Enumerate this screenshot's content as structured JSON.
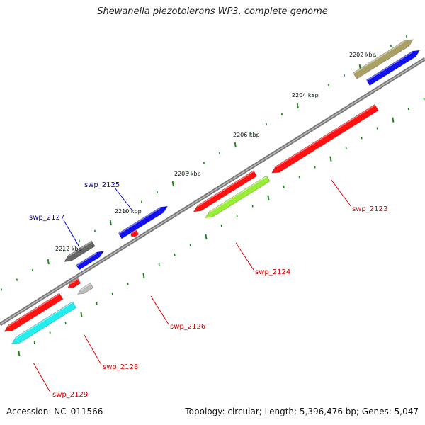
{
  "title": "Shewanella piezotolerans WP3, complete genome",
  "accession": "Accession: NC_011566",
  "summary": "Topology: circular; Length: 5,396,476 bp; Genes: 5,047",
  "colors": {
    "backbone": "#888888",
    "forward_label": "#0000cc",
    "reverse_label": "#dd0000",
    "tick_green": "#1a8a1a"
  },
  "axis_labels": [
    {
      "text": "2202 kbp"
    },
    {
      "text": "2204 kbp"
    },
    {
      "text": "2206 kbp"
    },
    {
      "text": "2208 kbp"
    },
    {
      "text": "2210 kbp"
    },
    {
      "text": "2212 kbp"
    }
  ],
  "genes": [
    {
      "name": "swp_2123",
      "color": "#ff1111",
      "labeled": true
    },
    {
      "name": "swp_2124",
      "color": "#ff1111",
      "labeled": true
    },
    {
      "name": "swp_2124 (cog)",
      "color": "#99ee33",
      "labeled": false
    },
    {
      "name": "swp_2125",
      "color": "#1111ee",
      "labeled": true
    },
    {
      "name": "swp_2126",
      "color": "#ff1111",
      "labeled": true
    },
    {
      "name": "swp_2127",
      "color": "#1111ee",
      "labeled": true
    },
    {
      "name": "swp_2127 (cog)",
      "color": "#666666",
      "labeled": false
    },
    {
      "name": "swp_2128",
      "color": "#ff1111",
      "labeled": true
    },
    {
      "name": "swp_2128 (cog)",
      "color": "#bbbbbb",
      "labeled": false
    },
    {
      "name": "swp_2129",
      "color": "#ff1111",
      "labeled": true
    },
    {
      "name": "swp_2129 (cog)",
      "color": "#22eeee",
      "labeled": false
    },
    {
      "name": "swp_2122",
      "color": "#1111ee",
      "labeled": false
    },
    {
      "name": "swp_2122 (cog)",
      "color": "#aaa066",
      "labeled": false
    }
  ]
}
